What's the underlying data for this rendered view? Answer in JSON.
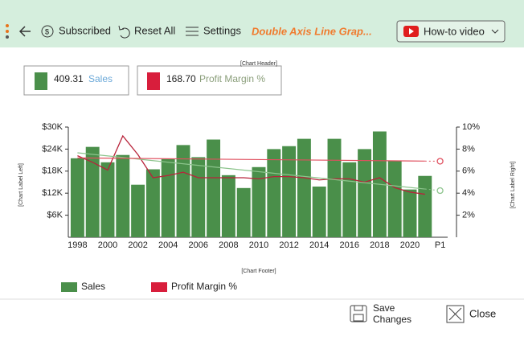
{
  "toolbar": {
    "subscribed": "Subscribed",
    "reset": "Reset All",
    "settings": "Settings",
    "title": "Double Axis Line Grap...",
    "video": "How-to video"
  },
  "summary": [
    {
      "value": "409.31",
      "name": "Sales"
    },
    {
      "value": "168.70",
      "name": "Profit Margin %"
    }
  ],
  "chart_header": "[Chart Header]",
  "chart_footer": "[Chart Footer]",
  "label_left": "[Chart Label Left]",
  "label_right": "[Chart Label Right]",
  "chart_data": {
    "type": "bar",
    "categories": [
      "1998",
      null,
      "2000",
      null,
      "2002",
      null,
      "2004",
      null,
      "2006",
      null,
      "2008",
      null,
      "2010",
      null,
      "2012",
      null,
      "2014",
      null,
      "2016",
      null,
      "2018",
      null,
      "2020",
      null,
      "P1"
    ],
    "series": [
      {
        "name": "Sales",
        "color": "#4a8f4a",
        "type": "bar",
        "axis": "y",
        "trend": [
          23000,
          12700
        ],
        "trend_color": "#8cc48c",
        "values": [
          21500,
          24600,
          20400,
          22400,
          14300,
          18500,
          21300,
          25100,
          21800,
          26600,
          16900,
          13400,
          19100,
          24000,
          24800,
          26800,
          13800,
          26800,
          20400,
          24000,
          28800,
          20900,
          13000,
          16700,
          null
        ]
      },
      {
        "name": "Profit Margin %",
        "color": "#b8233a",
        "type": "line",
        "axis": "y2",
        "trend": [
          7.2,
          6.9
        ],
        "trend_color": "#e0505f",
        "values": [
          7.4,
          6.8,
          6.1,
          9.2,
          7.5,
          5.4,
          5.6,
          5.9,
          5.4,
          5.4,
          5.4,
          5.4,
          5.3,
          5.5,
          5.5,
          5.4,
          5.2,
          5.3,
          5.3,
          5.0,
          5.4,
          4.5,
          4.1,
          3.9,
          null
        ]
      }
    ],
    "ylim": [
      0,
      30000
    ],
    "yticks": [
      {
        "value": 6000,
        "label": "$6K"
      },
      {
        "value": 12000,
        "label": "$12K"
      },
      {
        "value": 18000,
        "label": "$18K"
      },
      {
        "value": 24000,
        "label": "$24K"
      },
      {
        "value": 30000,
        "label": "$30K"
      }
    ],
    "y2lim": [
      0,
      10
    ],
    "y2ticks": [
      {
        "value": 2,
        "label": "2%"
      },
      {
        "value": 4,
        "label": "4%"
      },
      {
        "value": 6,
        "label": "6%"
      },
      {
        "value": 8,
        "label": "8%"
      },
      {
        "value": 10,
        "label": "10%"
      }
    ]
  },
  "footer": {
    "save": "Save",
    "save2": "Changes",
    "close": "Close"
  }
}
